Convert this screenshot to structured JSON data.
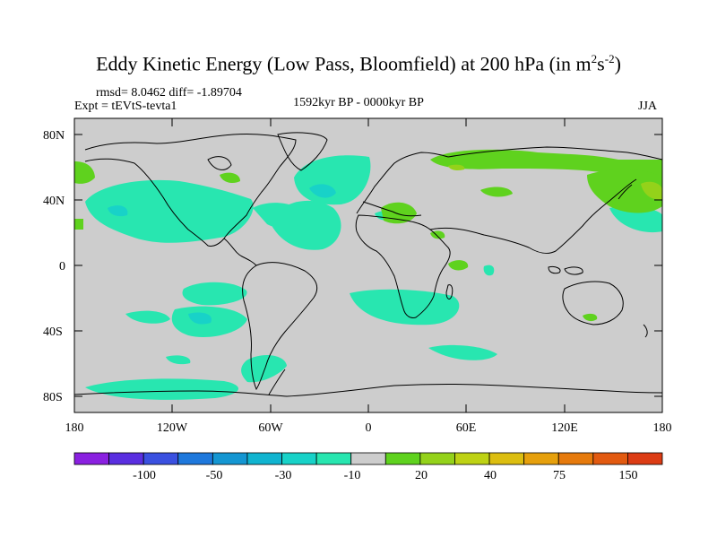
{
  "title": {
    "prefix": "Eddy Kinetic Energy (Low Pass, Bloomfield) at 200 hPa (in m",
    "sup1": "2",
    "mid": "s",
    "sup2": "-2",
    "suffix": ")"
  },
  "stats": "rmsd= 8.0462 diff= -1.89704",
  "experiment": "Expt = tEVtS-tevta1",
  "period": "1592kyr BP - 0000kyr BP",
  "season": "JJA",
  "y_ticks": [
    "80N",
    "40N",
    "0",
    "40S",
    "80S"
  ],
  "x_ticks": [
    "180",
    "120W",
    "60W",
    "0",
    "60E",
    "120E",
    "180"
  ],
  "colorbar": {
    "labels": [
      "-100",
      "-50",
      "-30",
      "-10",
      "20",
      "40",
      "75",
      "150"
    ],
    "colors": [
      "#8a20e0",
      "#5a2ee0",
      "#3a50e0",
      "#1e78dc",
      "#1496d2",
      "#10b4d0",
      "#18d2c8",
      "#28e6b0",
      "#cdcdcd",
      "#5fd21e",
      "#94d21a",
      "#bed214",
      "#dcbe10",
      "#e6a00c",
      "#e67a0c",
      "#e25a10",
      "#dc3c14"
    ]
  },
  "colors": {
    "ocean_land_background": "#cdcdcd",
    "negative_anomaly": "#28e6b0",
    "negative_anomaly_strong": "#18d2c8",
    "positive_anomaly": "#5fd21e",
    "positive_anomaly_strong": "#94d21a"
  }
}
